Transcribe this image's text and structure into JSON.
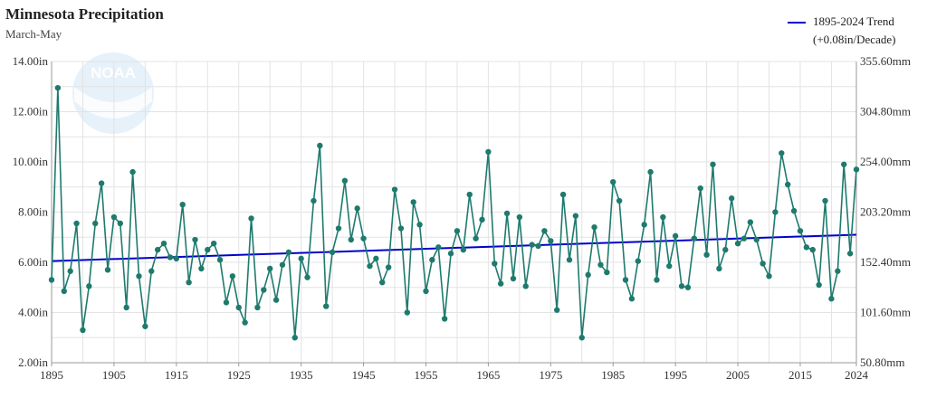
{
  "chart_data": {
    "type": "line",
    "title": "Minnesota Precipitation",
    "subtitle": "March-May",
    "xlim": [
      1895,
      2024
    ],
    "ylim": [
      2.0,
      14.0
    ],
    "y_ticks": [
      "2.00in",
      "4.00in",
      "6.00in",
      "8.00in",
      "10.00in",
      "12.00in",
      "14.00in"
    ],
    "y2_ticks": [
      "50.80mm",
      "101.60mm",
      "152.40mm",
      "203.20mm",
      "254.00mm",
      "304.80mm",
      "355.60mm"
    ],
    "x_ticks": [
      "1895",
      "1905",
      "1915",
      "1925",
      "1935",
      "1945",
      "1955",
      "1965",
      "1975",
      "1985",
      "1995",
      "2005",
      "2015",
      "2024"
    ],
    "grid": true,
    "legend_position": "top-right",
    "legend": {
      "line1": "1895-2024 Trend",
      "line2": "(+0.08in/Decade)"
    },
    "series": [
      {
        "x_start": 1895,
        "color": "#1f7a6e",
        "values": [
          5.3,
          12.95,
          4.85,
          5.65,
          7.55,
          3.3,
          5.05,
          7.55,
          9.15,
          5.7,
          7.8,
          7.55,
          4.2,
          9.6,
          5.45,
          3.45,
          5.65,
          6.5,
          6.75,
          6.2,
          6.15,
          8.3,
          5.2,
          6.9,
          5.75,
          6.5,
          6.75,
          6.1,
          4.4,
          5.45,
          4.2,
          3.6,
          7.75,
          4.2,
          4.9,
          5.75,
          4.5,
          5.9,
          6.4,
          3.0,
          6.15,
          5.4,
          8.45,
          10.65,
          4.25,
          6.4,
          7.35,
          9.25,
          6.9,
          8.15,
          6.95,
          5.85,
          6.15,
          5.2,
          5.8,
          8.9,
          7.35,
          4.0,
          8.4,
          7.5,
          4.85,
          6.1,
          6.6,
          3.75,
          6.35,
          7.25,
          6.5,
          8.7,
          6.95,
          7.7,
          10.4,
          5.95,
          5.15,
          7.95,
          5.35,
          7.8,
          5.05,
          6.7,
          6.65,
          7.25,
          6.85,
          4.1,
          8.7,
          6.1,
          7.85,
          3.0,
          5.5,
          7.4,
          5.9,
          5.6,
          9.2,
          8.45,
          5.3,
          4.55,
          6.05,
          7.5,
          9.6,
          5.3,
          7.8,
          5.85,
          7.05,
          5.05,
          5.0,
          6.95,
          8.95,
          6.3,
          9.9,
          5.75,
          6.5,
          8.55,
          6.75,
          6.95,
          7.6,
          6.9,
          5.95,
          5.45,
          8.0,
          10.35,
          9.1,
          8.05,
          7.25,
          6.6,
          6.5,
          5.1,
          8.45,
          4.55,
          5.65,
          9.9,
          6.35,
          9.7
        ]
      }
    ],
    "trend": {
      "x": [
        1895,
        2024
      ],
      "y": [
        6.05,
        7.1
      ],
      "color": "#0000cc"
    }
  }
}
